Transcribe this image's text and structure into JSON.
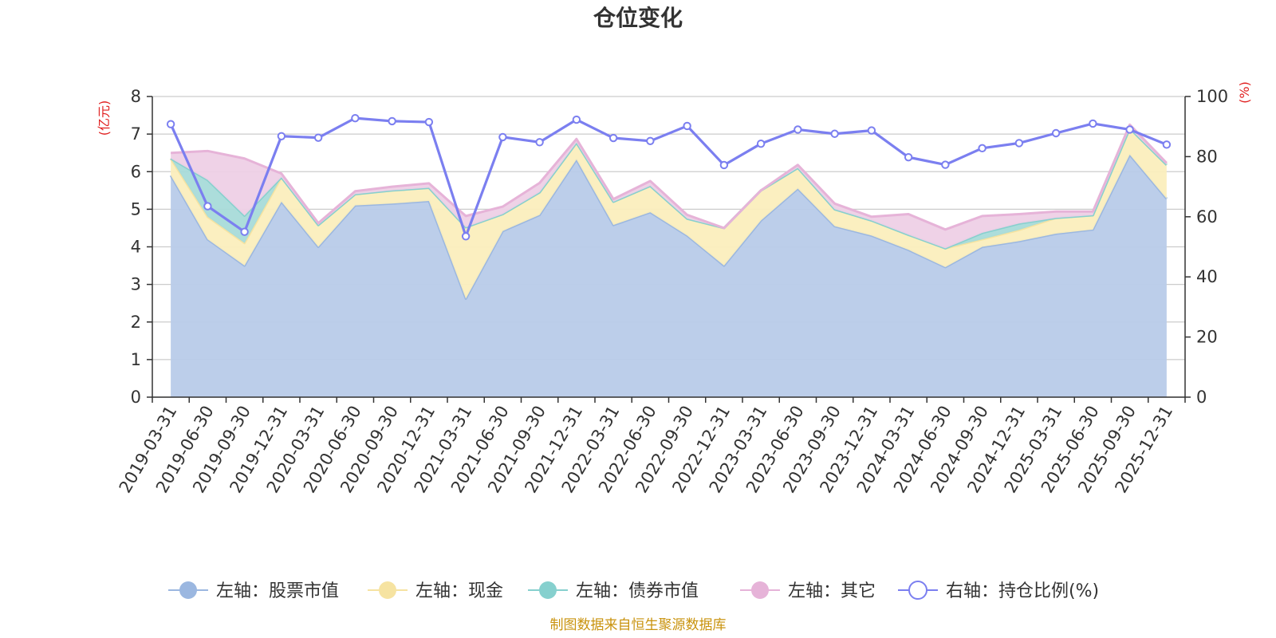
{
  "chart_data": {
    "type": "area",
    "title": "仓位变化",
    "left_unit": "(亿元)",
    "right_unit": "(%)",
    "ylim_left": [
      0,
      8
    ],
    "ylim_right": [
      0,
      100
    ],
    "y_ticks_left": [
      "0",
      "1",
      "2",
      "3",
      "4",
      "5",
      "6",
      "7",
      "8"
    ],
    "y_ticks_right": [
      "0",
      "20",
      "40",
      "60",
      "80",
      "100"
    ],
    "categories": [
      "2019-03-31",
      "2019-06-30",
      "2019-09-30",
      "2019-12-31",
      "2020-03-31",
      "2020-06-30",
      "2020-09-30",
      "2020-12-31",
      "2021-03-31",
      "2021-06-30",
      "2021-09-30",
      "2021-12-31",
      "2022-03-31",
      "2022-06-30",
      "2022-09-30",
      "2022-12-31",
      "2023-03-31",
      "2023-06-30",
      "2023-09-30",
      "2023-12-31",
      "2024-03-31",
      "2024-06-30",
      "2024-09-30",
      "2024-12-31",
      "2025-03-31",
      "2025-06-30",
      "2025-09-30",
      "2025-12-31"
    ],
    "series": [
      {
        "name": "左轴：股票市值",
        "axis": "left",
        "color": "#9bb7e0",
        "fill": "#b8cbe9",
        "values": [
          5.9,
          4.2,
          3.5,
          5.2,
          4.0,
          5.1,
          5.15,
          5.22,
          2.62,
          4.42,
          4.85,
          6.32,
          4.58,
          4.92,
          4.3,
          3.5,
          4.7,
          5.55,
          4.55,
          4.3,
          3.92,
          3.46,
          4.0,
          4.15,
          4.35,
          4.46,
          6.45,
          5.28
        ]
      },
      {
        "name": "左轴：现金",
        "axis": "left",
        "color": "#f6e3a1",
        "fill": "#fbeebd",
        "values": [
          0.45,
          0.6,
          0.6,
          0.65,
          0.58,
          0.3,
          0.35,
          0.35,
          1.9,
          0.45,
          0.6,
          0.45,
          0.62,
          0.7,
          0.45,
          1.0,
          0.8,
          0.55,
          0.45,
          0.4,
          0.4,
          0.5,
          0.2,
          0.3,
          0.42,
          0.38,
          0.7,
          0.9
        ]
      },
      {
        "name": "左轴：债券市值",
        "axis": "left",
        "color": "#86d0ce",
        "fill": "#a8dbd9",
        "values": [
          0,
          0.98,
          0.73,
          0,
          0,
          0,
          0,
          0,
          0,
          0,
          0,
          0,
          0,
          0,
          0,
          0,
          0,
          0,
          0,
          0,
          0,
          0,
          0.17,
          0.17,
          0,
          0,
          0,
          0
        ]
      },
      {
        "name": "左轴：其它",
        "axis": "left",
        "color": "#e6b3d8",
        "fill": "#eed0e6",
        "values": [
          0.15,
          0.77,
          1.52,
          0.1,
          0.05,
          0.08,
          0.1,
          0.12,
          0.3,
          0.2,
          0.25,
          0.1,
          0.07,
          0.13,
          0.1,
          0.0,
          0.0,
          0.08,
          0.15,
          0.1,
          0.55,
          0.5,
          0.45,
          0.25,
          0.17,
          0.1,
          0.1,
          0.05
        ]
      },
      {
        "name": "右轴：持仓比例(%)",
        "axis": "right",
        "color": "#7b7ff0",
        "values": [
          90.8,
          63.5,
          55.0,
          86.8,
          86.3,
          92.8,
          91.8,
          91.5,
          53.5,
          86.5,
          84.8,
          92.3,
          86.2,
          85.2,
          90.2,
          77.2,
          84.3,
          89.0,
          87.6,
          88.7,
          79.8,
          77.3,
          82.8,
          84.5,
          87.8,
          91.0,
          89.0,
          84.0
        ]
      }
    ]
  },
  "source_text": "制图数据来自恒生聚源数据库"
}
